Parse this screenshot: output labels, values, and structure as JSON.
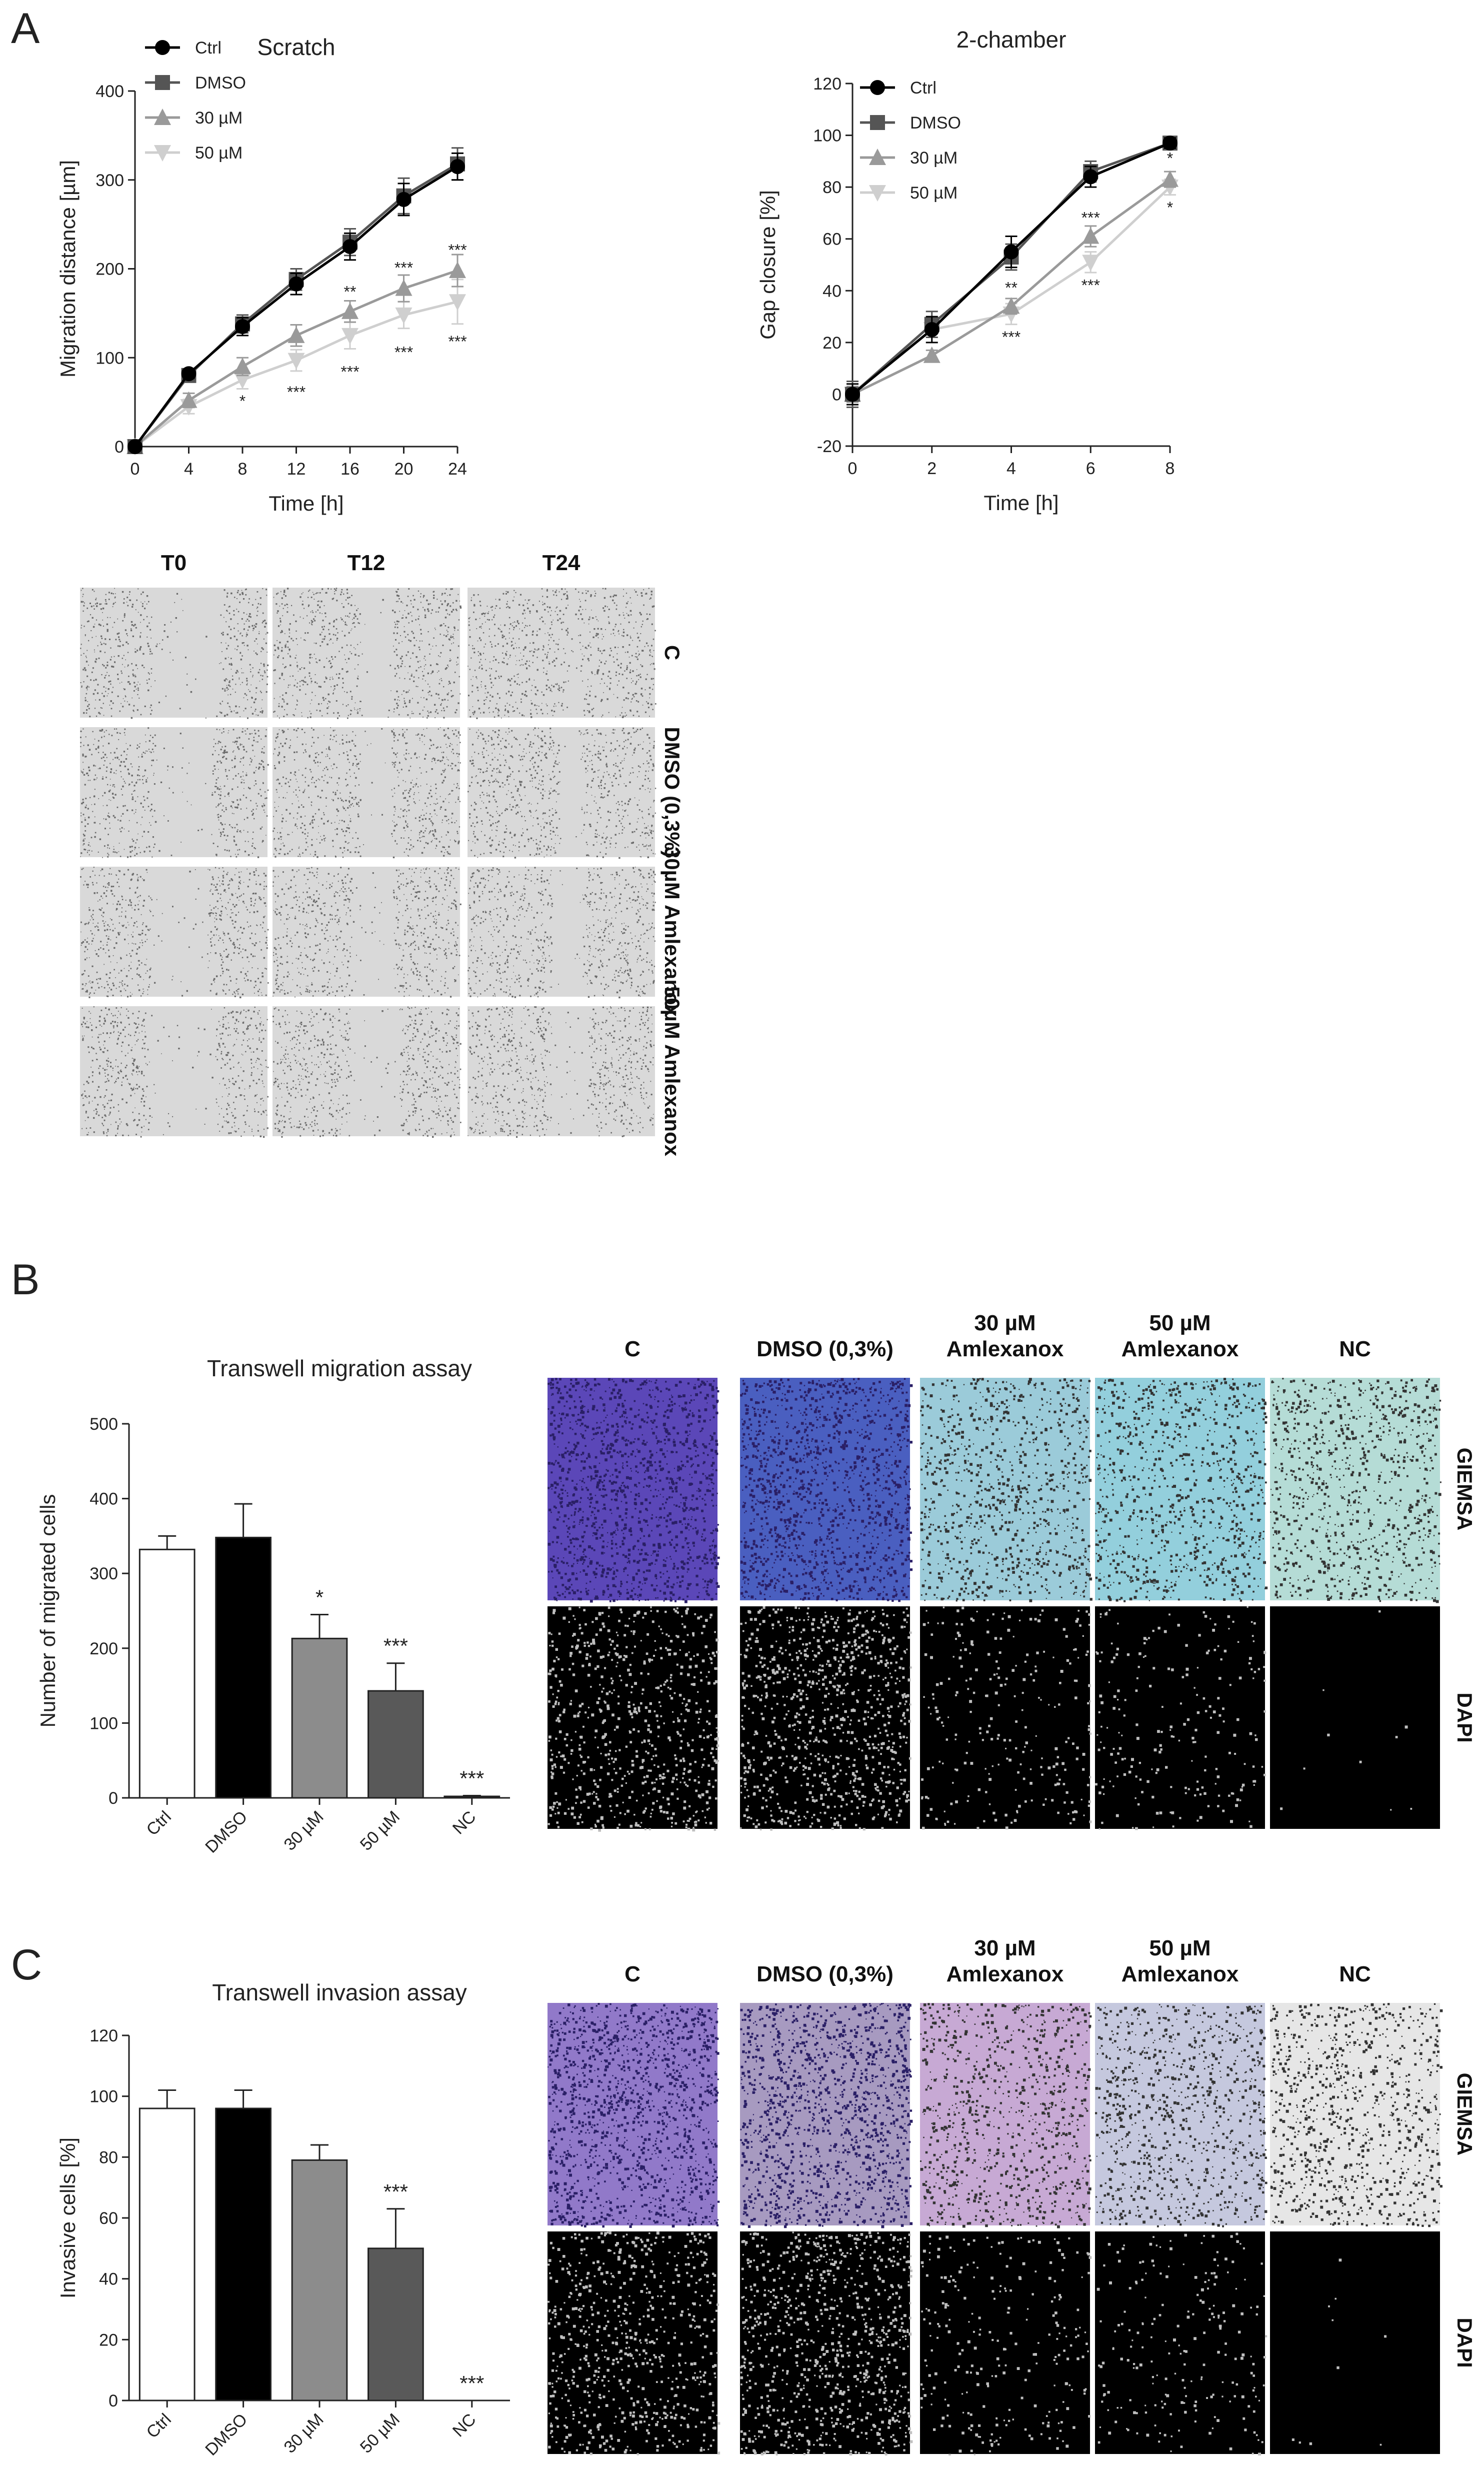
{
  "panel_labels": {
    "a": "A",
    "b": "B",
    "c": "C"
  },
  "scratch_grid": {
    "columns": [
      "T0",
      "T12",
      "T24"
    ],
    "rows": [
      "C",
      "DMSO (0,3%)",
      "30µM Amlexanox",
      "50µM Amlexanox"
    ]
  },
  "transwell_grid_b": {
    "columns": [
      "C",
      "DMSO (0,3%)",
      "30 µM Amlexanox",
      "50 µM Amlexanox",
      "NC"
    ],
    "rows": [
      "GIEMSA",
      "DAPI"
    ],
    "tints": [
      "#5b47b8",
      "#4a5fc0",
      "#9bcbd9",
      "#93cfdc",
      "#b5dcd6"
    ]
  },
  "transwell_grid_c": {
    "columns": [
      "C",
      "DMSO (0,3%)",
      "30 µM Amlexanox",
      "50 µM Amlexanox",
      "NC"
    ],
    "rows": [
      "GIEMSA",
      "DAPI"
    ],
    "tints": [
      "#9179c9",
      "#a79ac0",
      "#c7a9d4",
      "#c5c8de",
      "#e6e6e6"
    ]
  },
  "chart_data": [
    {
      "type": "line",
      "title": "Scratch",
      "xlabel": "Time [h]",
      "ylabel": "Migration distance [µm]",
      "x": [
        0,
        4,
        8,
        12,
        16,
        20,
        24
      ],
      "xlim": [
        0,
        24
      ],
      "ylim": [
        0,
        400
      ],
      "xticks": [
        "0",
        "4",
        "8",
        "12",
        "16",
        "20",
        "24"
      ],
      "yticks": [
        "0",
        "100",
        "200",
        "300",
        "400"
      ],
      "legend_position": "top-left",
      "series": [
        {
          "name": "Ctrl",
          "values": [
            0,
            82,
            135,
            183,
            225,
            278,
            315
          ],
          "err": [
            0,
            5,
            10,
            12,
            15,
            18,
            15
          ],
          "color": "#000000",
          "marker": "circle"
        },
        {
          "name": "DMSO",
          "values": [
            0,
            80,
            138,
            188,
            230,
            282,
            318
          ],
          "err": [
            0,
            5,
            10,
            12,
            15,
            20,
            18
          ],
          "color": "#555555",
          "marker": "square"
        },
        {
          "name": "30 µM",
          "values": [
            0,
            52,
            90,
            125,
            152,
            178,
            198
          ],
          "err": [
            0,
            8,
            10,
            12,
            12,
            15,
            18
          ],
          "color": "#9a9a9a",
          "marker": "triangle-up"
        },
        {
          "name": "50 µM",
          "values": [
            0,
            45,
            75,
            97,
            125,
            148,
            163
          ],
          "err": [
            0,
            8,
            10,
            12,
            15,
            15,
            25
          ],
          "color": "#cfcfcf",
          "marker": "triangle-down"
        }
      ],
      "annotations": [
        {
          "x": 8,
          "y": 45,
          "text": "*"
        },
        {
          "x": 12,
          "y": 55,
          "text": "***"
        },
        {
          "x": 16,
          "y": 168,
          "text": "**"
        },
        {
          "x": 16,
          "y": 78,
          "text": "***"
        },
        {
          "x": 20,
          "y": 195,
          "text": "***"
        },
        {
          "x": 20,
          "y": 100,
          "text": "***"
        },
        {
          "x": 24,
          "y": 215,
          "text": "***"
        },
        {
          "x": 24,
          "y": 112,
          "text": "***"
        }
      ]
    },
    {
      "type": "line",
      "title": "2-chamber",
      "xlabel": "Time [h]",
      "ylabel": "Gap closure [%]",
      "x": [
        0,
        2,
        4,
        6,
        8
      ],
      "xlim": [
        0,
        8
      ],
      "ylim": [
        -20,
        120
      ],
      "xticks": [
        "0",
        "2",
        "4",
        "6",
        "8"
      ],
      "yticks": [
        "-20",
        "0",
        "20",
        "40",
        "60",
        "80",
        "100",
        "120"
      ],
      "legend_position": "top-left",
      "series": [
        {
          "name": "Ctrl",
          "values": [
            0,
            25,
            55,
            84,
            97
          ],
          "err": [
            4,
            5,
            6,
            4,
            2
          ],
          "color": "#000000",
          "marker": "circle"
        },
        {
          "name": "DMSO",
          "values": [
            0,
            27,
            53,
            86,
            97
          ],
          "err": [
            5,
            5,
            5,
            4,
            2
          ],
          "color": "#555555",
          "marker": "square"
        },
        {
          "name": "30 µM",
          "values": [
            0,
            15,
            34,
            61,
            83
          ],
          "err": [
            3,
            2,
            3,
            4,
            3
          ],
          "color": "#9a9a9a",
          "marker": "triangle-up"
        },
        {
          "name": "50 µM",
          "values": [
            0,
            25,
            31,
            51,
            80
          ],
          "err": [
            3,
            3,
            4,
            4,
            3
          ],
          "color": "#cfcfcf",
          "marker": "triangle-down"
        }
      ],
      "annotations": [
        {
          "x": 4,
          "y": 39,
          "text": "**"
        },
        {
          "x": 4,
          "y": 20,
          "text": "***"
        },
        {
          "x": 6,
          "y": 66,
          "text": "***"
        },
        {
          "x": 6,
          "y": 40,
          "text": "***"
        },
        {
          "x": 8,
          "y": 89,
          "text": "*"
        },
        {
          "x": 8,
          "y": 70,
          "text": "*"
        }
      ]
    },
    {
      "type": "bar",
      "title": "Transwell migration assay",
      "xlabel": "",
      "ylabel": "Number of migrated cells",
      "categories": [
        "Ctrl",
        "DMSO",
        "30 µM",
        "50 µM",
        "NC"
      ],
      "values": [
        332,
        348,
        213,
        143,
        2
      ],
      "err": [
        18,
        45,
        32,
        37,
        1
      ],
      "colors": [
        "#ffffff",
        "#000000",
        "#8c8c8c",
        "#595959",
        "#ffffff"
      ],
      "significance": [
        "",
        "",
        "*",
        "***",
        "***"
      ],
      "ylim": [
        0,
        500
      ],
      "yticks": [
        "0",
        "100",
        "200",
        "300",
        "400",
        "500"
      ]
    },
    {
      "type": "bar",
      "title": "Transwell invasion assay",
      "xlabel": "",
      "ylabel": "Invasive cells [%]",
      "categories": [
        "Ctrl",
        "DMSO",
        "30 µM",
        "50 µM",
        "NC"
      ],
      "values": [
        96,
        96,
        79,
        50,
        0
      ],
      "err": [
        6,
        6,
        5,
        13,
        0
      ],
      "colors": [
        "#ffffff",
        "#000000",
        "#8c8c8c",
        "#595959",
        "#ffffff"
      ],
      "significance": [
        "",
        "",
        "",
        "***",
        "***"
      ],
      "ylim": [
        0,
        120
      ],
      "yticks": [
        "0",
        "20",
        "40",
        "60",
        "80",
        "100",
        "120"
      ]
    }
  ]
}
